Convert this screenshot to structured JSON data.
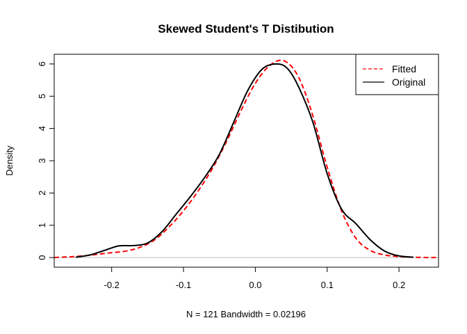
{
  "chart_data": {
    "type": "line",
    "title": "Skewed Student's T Distibution",
    "xlabel": "N = 121   Bandwidth = 0.02196",
    "ylabel": "Density",
    "xlim": [
      -0.28,
      0.255
    ],
    "ylim": [
      -0.3,
      6.3
    ],
    "x_ticks": [
      -0.2,
      -0.1,
      0.0,
      0.1,
      0.2
    ],
    "x_tick_labels": [
      "-0.2",
      "-0.1",
      "0.0",
      "0.1",
      "0.2"
    ],
    "y_ticks": [
      0,
      1,
      2,
      3,
      4,
      5,
      6
    ],
    "y_tick_labels": [
      "0",
      "1",
      "2",
      "3",
      "4",
      "5",
      "6"
    ],
    "grid": false,
    "baseline": 0,
    "legend": {
      "position": "top-right",
      "entries": [
        "Fitted",
        "Original"
      ]
    },
    "series": [
      {
        "name": "Fitted",
        "color": "#ff0000",
        "style": "dashed",
        "x": [
          -0.28,
          -0.26,
          -0.24,
          -0.22,
          -0.2,
          -0.18,
          -0.16,
          -0.14,
          -0.12,
          -0.1,
          -0.08,
          -0.06,
          -0.04,
          -0.02,
          0.0,
          0.02,
          0.04,
          0.06,
          0.08,
          0.1,
          0.12,
          0.14,
          0.16,
          0.18,
          0.2,
          0.22,
          0.24,
          0.255
        ],
        "y": [
          0.0,
          0.02,
          0.05,
          0.1,
          0.15,
          0.2,
          0.32,
          0.55,
          0.95,
          1.45,
          2.05,
          2.75,
          3.6,
          4.55,
          5.4,
          5.95,
          6.1,
          5.6,
          4.4,
          2.8,
          1.45,
          0.6,
          0.22,
          0.08,
          0.03,
          0.01,
          0.0,
          0.0
        ]
      },
      {
        "name": "Original",
        "color": "#000000",
        "style": "solid",
        "x": [
          -0.25,
          -0.23,
          -0.21,
          -0.19,
          -0.17,
          -0.15,
          -0.13,
          -0.11,
          -0.09,
          -0.07,
          -0.05,
          -0.03,
          -0.01,
          0.01,
          0.03,
          0.045,
          0.06,
          0.08,
          0.1,
          0.12,
          0.14,
          0.16,
          0.18,
          0.2,
          0.22
        ],
        "y": [
          0.01,
          0.08,
          0.22,
          0.36,
          0.37,
          0.45,
          0.8,
          1.35,
          1.9,
          2.5,
          3.2,
          4.2,
          5.2,
          5.85,
          6.0,
          5.85,
          5.3,
          4.2,
          2.6,
          1.5,
          1.05,
          0.55,
          0.2,
          0.05,
          0.01
        ]
      }
    ]
  }
}
